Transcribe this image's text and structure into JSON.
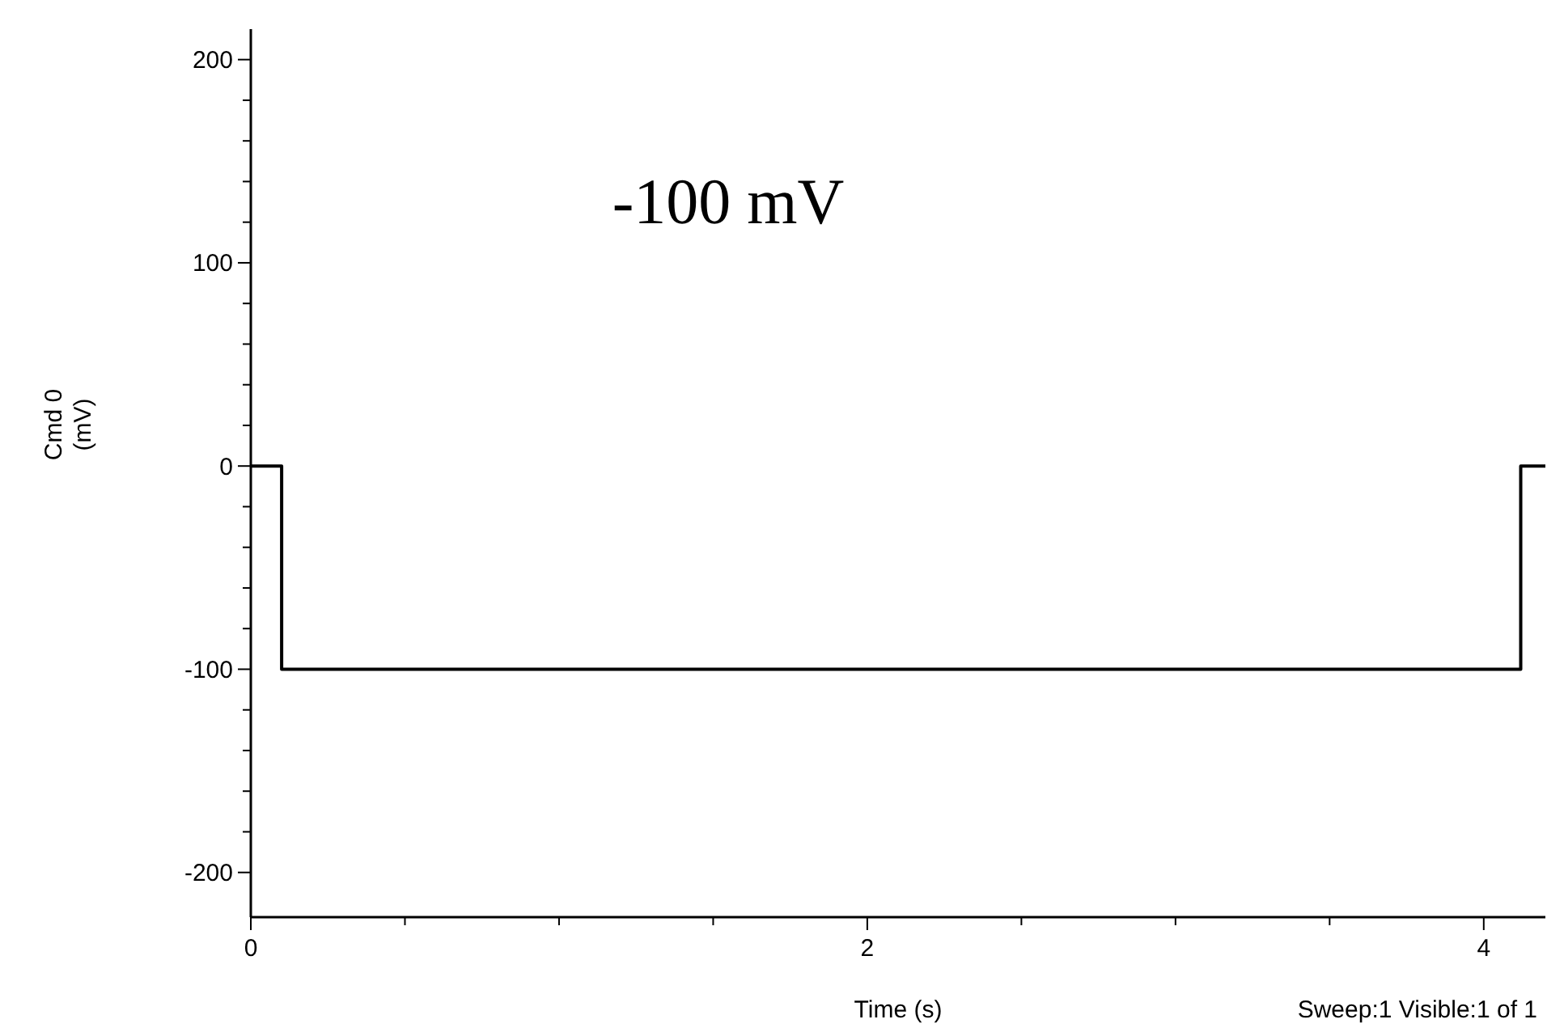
{
  "chart_data": {
    "type": "line",
    "xlabel": "Time (s)",
    "ylabel": "Cmd 0\n(mV)",
    "annotations": [
      "-100 mV",
      "Sweep:1 Visible:1 of 1"
    ],
    "series": [
      {
        "color": "#000000",
        "x": [
          0,
          0.1,
          0.1,
          4.12,
          4.12,
          4.2
        ],
        "values": [
          0,
          0,
          -100,
          -100,
          0,
          0
        ]
      }
    ],
    "xlim": [
      0,
      4.2
    ],
    "ylim": [
      -222,
      215
    ],
    "xticks": [
      0,
      {
        "value": 0.5,
        "label": null
      },
      {
        "value": 1,
        "label": null
      },
      {
        "value": 1.5,
        "label": null
      },
      2,
      {
        "value": 2.5,
        "label": null
      },
      {
        "value": 3,
        "label": null
      },
      {
        "value": 3.5,
        "label": null
      },
      4
    ],
    "yticks": [
      -200,
      {
        "value": -180,
        "label": null
      },
      {
        "value": -160,
        "label": null
      },
      {
        "value": -140,
        "label": null
      },
      {
        "value": -120,
        "label": null
      },
      -100,
      {
        "value": -80,
        "label": null
      },
      {
        "value": -60,
        "label": null
      },
      {
        "value": -40,
        "label": null
      },
      {
        "value": -20,
        "label": null
      },
      0,
      {
        "value": 20,
        "label": null
      },
      {
        "value": 40,
        "label": null
      },
      {
        "value": 60,
        "label": null
      },
      {
        "value": 80,
        "label": null
      },
      100,
      {
        "value": 120,
        "label": null
      },
      {
        "value": 140,
        "label": null
      },
      {
        "value": 160,
        "label": null
      },
      {
        "value": 180,
        "label": null
      },
      200
    ],
    "grid": false,
    "marker": "none",
    "line_style": "solid"
  }
}
